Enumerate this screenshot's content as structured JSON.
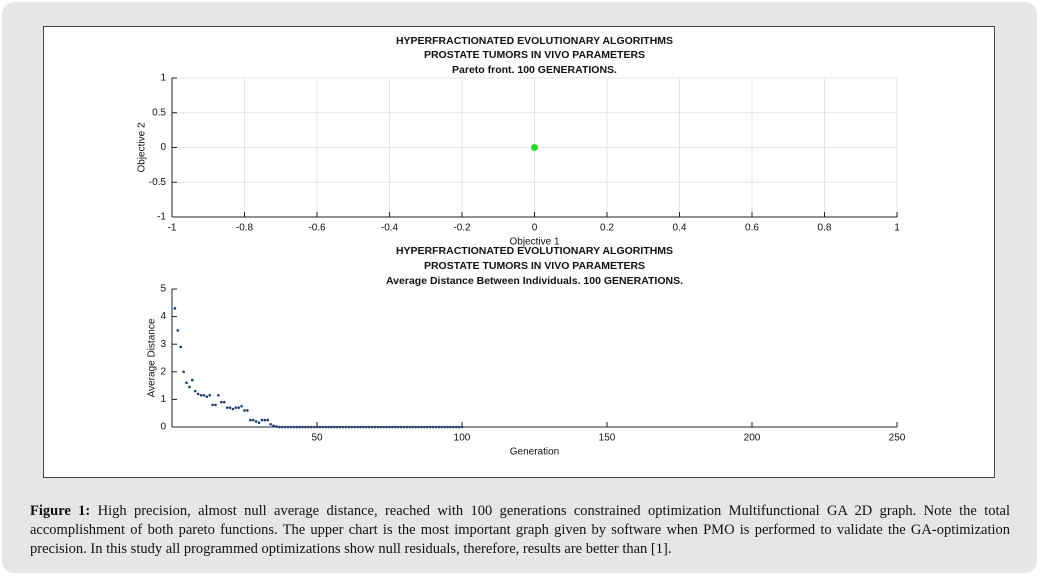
{
  "chart_data": [
    {
      "type": "scatter",
      "title": [
        "HYPERFRACTIONATED EVOLUTIONARY ALGORITHMS",
        "PROSTATE TUMORS IN VIVO PARAMETERS",
        "Pareto front. 100 GENERATIONS."
      ],
      "x_label": "Objective 1",
      "y_label": "Objective 2",
      "x": [
        0
      ],
      "values": [
        0
      ],
      "color": "#22dd22",
      "xlim": [
        -1,
        1
      ],
      "xticks": [
        -1,
        -0.8,
        -0.6,
        -0.4,
        -0.2,
        0,
        0.2,
        0.4,
        0.6,
        0.8,
        1
      ],
      "ylim": [
        -1,
        1
      ],
      "yticks": [
        -1,
        -0.5,
        0,
        0.5,
        1
      ],
      "grid": true
    },
    {
      "type": "scatter",
      "title": [
        "HYPERFRACTIONATED EVOLUTIONARY ALGORITHMS",
        "PROSTATE TUMORS IN VIVO PARAMETERS",
        "Average Distance Between Individuals. 100 GENERATIONS."
      ],
      "x_label": "Generation",
      "y_label": "Average Distance",
      "x": [
        1,
        2,
        3,
        4,
        5,
        6,
        7,
        8,
        9,
        10,
        11,
        12,
        13,
        14,
        15,
        16,
        17,
        18,
        19,
        20,
        21,
        22,
        23,
        24,
        25,
        26,
        27,
        28,
        29,
        30,
        31,
        32,
        33,
        34,
        35,
        36,
        37,
        38,
        39,
        40,
        41,
        42,
        43,
        44,
        45,
        46,
        47,
        48,
        49,
        50,
        51,
        52,
        53,
        54,
        55,
        56,
        57,
        58,
        59,
        60,
        61,
        62,
        63,
        64,
        65,
        66,
        67,
        68,
        69,
        70,
        71,
        72,
        73,
        74,
        75,
        76,
        77,
        78,
        79,
        80,
        81,
        82,
        83,
        84,
        85,
        86,
        87,
        88,
        89,
        90,
        91,
        92,
        93,
        94,
        95,
        96,
        97,
        98,
        99,
        100
      ],
      "values": [
        4.3,
        3.5,
        2.9,
        2.0,
        1.6,
        1.45,
        1.7,
        1.3,
        1.2,
        1.15,
        1.15,
        1.1,
        1.15,
        0.8,
        0.8,
        1.15,
        0.9,
        0.9,
        0.7,
        0.7,
        0.65,
        0.7,
        0.7,
        0.75,
        0.6,
        0.6,
        0.25,
        0.25,
        0.2,
        0.15,
        0.25,
        0.25,
        0.25,
        0.1,
        0.05,
        0.02,
        0,
        0,
        0,
        0,
        0,
        0,
        0,
        0,
        0,
        0,
        0,
        0,
        0,
        0,
        0,
        0,
        0,
        0,
        0,
        0,
        0,
        0,
        0,
        0,
        0,
        0,
        0,
        0,
        0,
        0,
        0,
        0,
        0,
        0,
        0,
        0,
        0,
        0,
        0,
        0,
        0,
        0,
        0,
        0,
        0,
        0,
        0,
        0,
        0,
        0,
        0,
        0,
        0,
        0,
        0,
        0,
        0,
        0,
        0,
        0,
        0,
        0,
        0,
        0
      ],
      "color": "#1f3a6e",
      "xlim": [
        0,
        250
      ],
      "xticks": [
        50,
        100,
        150,
        200,
        250
      ],
      "ylim": [
        0,
        5
      ],
      "yticks": [
        0,
        1,
        2,
        3,
        4,
        5
      ],
      "grid": false
    }
  ],
  "caption": {
    "label": "Figure 1:",
    "text": "High precision, almost null average distance, reached with 100 generations constrained optimization Multifunctional GA 2D graph. Note the total accomplishment of both pareto functions. The upper chart is the most important graph given by software when PMO is performed to validate the GA-optimization precision. In this study all programmed optimizations show null residuals, therefore, results are better than [1]."
  }
}
